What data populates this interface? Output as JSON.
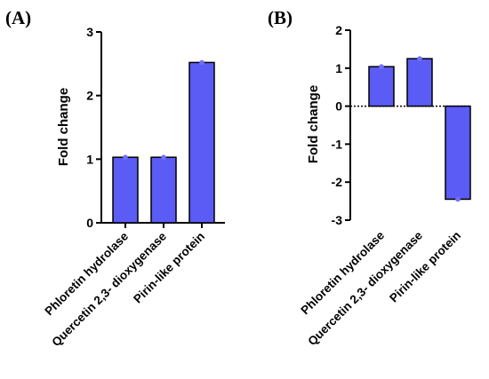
{
  "chart_data": [
    {
      "type": "bar",
      "panel_label": "(A)",
      "categories": [
        "Phloretin hydrolase",
        "Quercetin 2,3- dioxygenase",
        "Pirin-like protein"
      ],
      "values": [
        1.03,
        1.03,
        2.52
      ],
      "ylabel": "Fold change",
      "ylim": [
        0,
        3
      ],
      "yticks": [
        0,
        1,
        2,
        3
      ],
      "grid": false,
      "zero_line": false
    },
    {
      "type": "bar",
      "panel_label": "(B)",
      "categories": [
        "Phloretin hydrolase",
        "Quercetin 2,3- dioxygenase",
        "Pirin-like protein"
      ],
      "values": [
        1.04,
        1.25,
        -2.45
      ],
      "ylabel": "Fold change",
      "ylim": [
        -3,
        2
      ],
      "yticks": [
        -3,
        -2,
        -1,
        0,
        1,
        2
      ],
      "grid": false,
      "zero_line": true
    }
  ],
  "colors": {
    "bar_fill": "#5b5bf5",
    "bar_stroke": "#000000",
    "point": "#7070ff"
  }
}
